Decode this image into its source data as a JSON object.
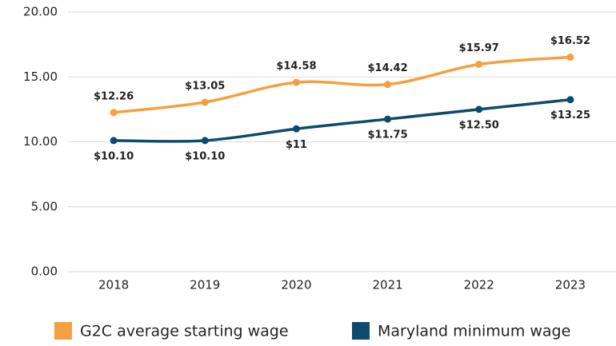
{
  "chart_data": {
    "type": "line",
    "categories": [
      "2018",
      "2019",
      "2020",
      "2021",
      "2022",
      "2023"
    ],
    "series": [
      {
        "name": "G2C average starting wage",
        "color": "#f5a040",
        "values": [
          12.26,
          13.05,
          14.58,
          14.42,
          15.97,
          16.52
        ],
        "value_labels": [
          "$12.26",
          "$13.05",
          "$14.58",
          "$14.42",
          "$15.97",
          "$16.52"
        ]
      },
      {
        "name": "Maryland minimum wage",
        "color": "#0e4a6c",
        "values": [
          10.1,
          10.1,
          11,
          11.75,
          12.5,
          13.25
        ],
        "value_labels": [
          "$10.10",
          "$10.10",
          "$11",
          "$11.75",
          "$12.50",
          "$13.25"
        ]
      }
    ],
    "ylim": [
      0,
      20
    ],
    "yticks": [
      {
        "value": 0,
        "label": "0.00"
      },
      {
        "value": 5,
        "label": "5.00"
      },
      {
        "value": 10,
        "label": "10.00"
      },
      {
        "value": 15,
        "label": "15.00"
      },
      {
        "value": 20,
        "label": "20.00"
      }
    ],
    "grid": true,
    "legend": "bottom"
  }
}
